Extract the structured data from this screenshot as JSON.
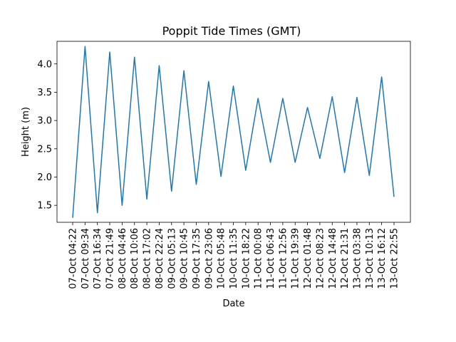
{
  "chart_data": {
    "type": "line",
    "title": "Poppit Tide Times (GMT)",
    "xlabel": "Date",
    "ylabel": "Height (m)",
    "ylim": [
      1.2,
      4.4
    ],
    "yticks": [
      "1.5",
      "2.0",
      "2.5",
      "3.0",
      "3.5",
      "4.0"
    ],
    "grid": false,
    "series_color": "#1f77b4",
    "categories": [
      "07-Oct 04:22",
      "07-Oct 09:34",
      "07-Oct 16:34",
      "07-Oct 21:49",
      "08-Oct 04:46",
      "08-Oct 10:06",
      "08-Oct 17:02",
      "08-Oct 22:24",
      "09-Oct 05:13",
      "09-Oct 10:45",
      "09-Oct 17:35",
      "09-Oct 23:06",
      "10-Oct 05:48",
      "10-Oct 11:35",
      "10-Oct 18:22",
      "11-Oct 00:08",
      "11-Oct 06:43",
      "11-Oct 12:56",
      "11-Oct 19:39",
      "12-Oct 01:48",
      "12-Oct 08:23",
      "12-Oct 14:48",
      "12-Oct 21:31",
      "13-Oct 03:38",
      "13-Oct 10:13",
      "13-Oct 16:12",
      "13-Oct 22:55"
    ],
    "values": [
      1.28,
      4.31,
      1.37,
      4.21,
      1.5,
      4.12,
      1.61,
      3.97,
      1.75,
      3.88,
      1.87,
      3.69,
      2.01,
      3.61,
      2.12,
      3.39,
      2.26,
      3.39,
      2.26,
      3.23,
      2.33,
      3.42,
      2.08,
      3.41,
      2.03,
      3.77,
      1.65
    ]
  }
}
